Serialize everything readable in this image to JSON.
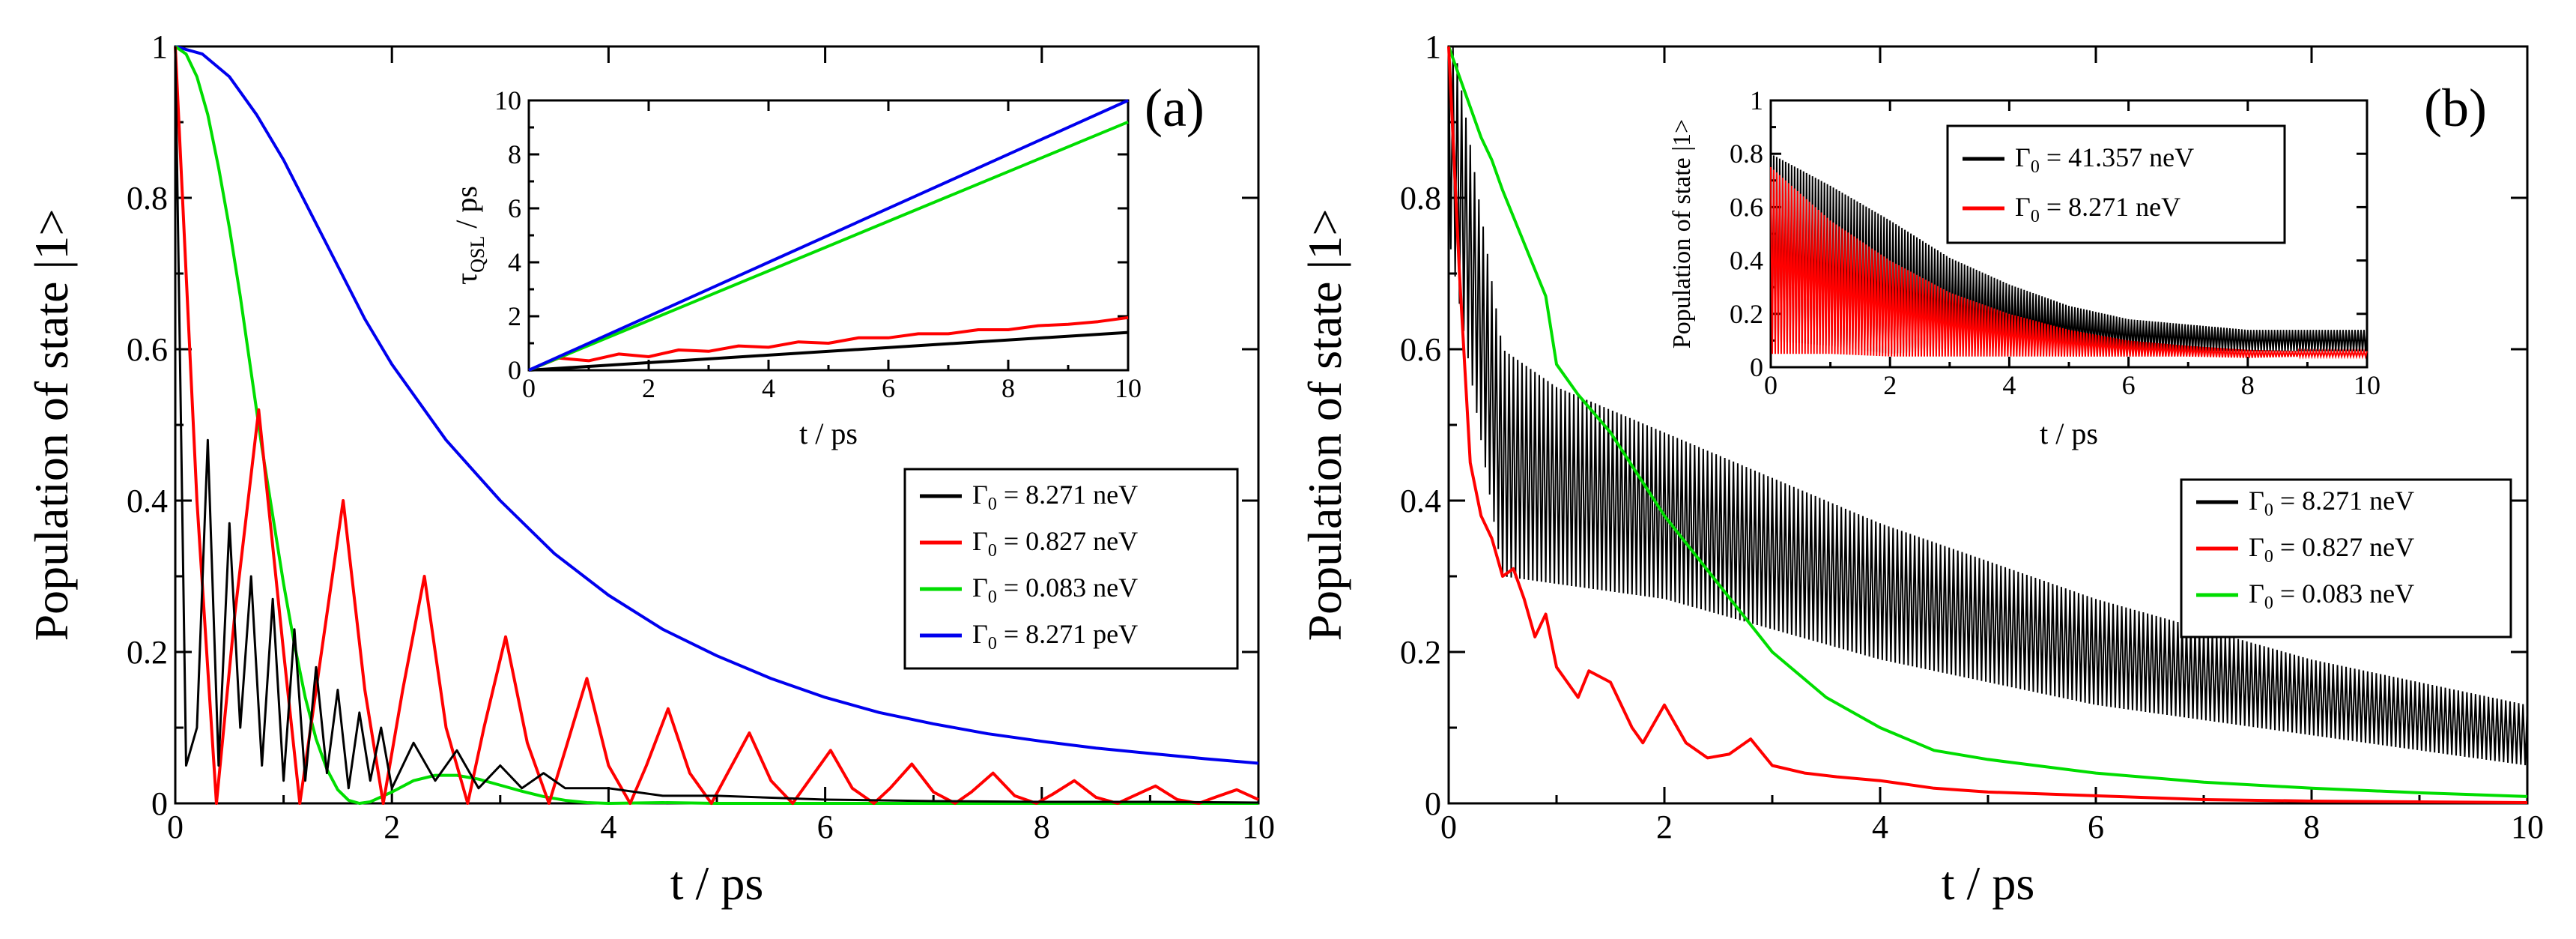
{
  "chart_data": [
    {
      "panel": "(a)",
      "type": "line",
      "xlabel": "t / ps",
      "ylabel": "Population of state |1>",
      "xlim": [
        0,
        10
      ],
      "ylim": [
        0,
        1
      ],
      "xticks": [
        "0",
        "2",
        "4",
        "6",
        "8",
        "10"
      ],
      "yticks": [
        "0",
        "0.2",
        "0.4",
        "0.6",
        "0.8",
        "1"
      ],
      "legend_position": "middle-right",
      "series": [
        {
          "name": "Γ0 = 8.271 neV",
          "symbol": "Γ",
          "sub": "0",
          "rest": " = 8.271 neV",
          "color": "#000000",
          "x": [
            0,
            0.1,
            0.2,
            0.3,
            0.4,
            0.5,
            0.6,
            0.7,
            0.8,
            0.9,
            1.0,
            1.1,
            1.2,
            1.3,
            1.4,
            1.5,
            1.6,
            1.7,
            1.8,
            1.9,
            2.0,
            2.2,
            2.4,
            2.6,
            2.8,
            3.0,
            3.2,
            3.4,
            3.6,
            3.8,
            4.0,
            4.5,
            5.0,
            6.0,
            7.0,
            8.0,
            9.0,
            10.0
          ],
          "y": [
            1,
            0.05,
            0.1,
            0.48,
            0.05,
            0.37,
            0.1,
            0.3,
            0.05,
            0.27,
            0.03,
            0.23,
            0.03,
            0.18,
            0.04,
            0.15,
            0.02,
            0.12,
            0.03,
            0.1,
            0.02,
            0.08,
            0.03,
            0.07,
            0.02,
            0.05,
            0.02,
            0.04,
            0.02,
            0.02,
            0.02,
            0.01,
            0.01,
            0.005,
            0.003,
            0.002,
            0.002,
            0.001
          ]
        },
        {
          "name": "Γ0 = 0.827 neV",
          "symbol": "Γ",
          "sub": "0",
          "rest": " = 0.827 neV",
          "color": "#ff0000",
          "x": [
            0,
            0.2,
            0.38,
            0.55,
            0.77,
            1.0,
            1.15,
            1.35,
            1.55,
            1.75,
            1.92,
            2.1,
            2.3,
            2.5,
            2.7,
            2.85,
            3.05,
            3.25,
            3.45,
            3.6,
            3.8,
            4.0,
            4.2,
            4.35,
            4.55,
            4.75,
            4.95,
            5.1,
            5.3,
            5.5,
            5.7,
            5.85,
            6.05,
            6.25,
            6.45,
            6.6,
            6.8,
            7.0,
            7.2,
            7.35,
            7.55,
            7.75,
            7.95,
            8.1,
            8.3,
            8.5,
            8.7,
            8.85,
            9.05,
            9.25,
            9.45,
            9.6,
            9.8,
            10.0
          ],
          "y": [
            1,
            0.4,
            0.0,
            0.25,
            0.52,
            0.2,
            0.0,
            0.2,
            0.4,
            0.15,
            0.0,
            0.15,
            0.3,
            0.1,
            0.0,
            0.1,
            0.22,
            0.08,
            0.0,
            0.07,
            0.165,
            0.05,
            0.0,
            0.05,
            0.125,
            0.04,
            0.0,
            0.04,
            0.093,
            0.03,
            0.0,
            0.03,
            0.07,
            0.02,
            0.0,
            0.02,
            0.052,
            0.015,
            0.0,
            0.015,
            0.04,
            0.01,
            0.0,
            0.012,
            0.03,
            0.008,
            0.0,
            0.01,
            0.023,
            0.005,
            0.0,
            0.008,
            0.018,
            0.005
          ]
        },
        {
          "name": "Γ0 = 0.083 neV",
          "symbol": "Γ",
          "sub": "0",
          "rest": " = 0.083 neV",
          "color": "#00dd00",
          "x": [
            0,
            0.1,
            0.2,
            0.3,
            0.4,
            0.5,
            0.6,
            0.7,
            0.8,
            0.9,
            1.0,
            1.1,
            1.2,
            1.3,
            1.4,
            1.5,
            1.6,
            1.7,
            1.8,
            2.0,
            2.2,
            2.4,
            2.6,
            2.8,
            3.0,
            3.2,
            3.4,
            3.6,
            3.8,
            4.0,
            4.5,
            5.0,
            6.0,
            8.0,
            10.0
          ],
          "y": [
            1,
            0.99,
            0.96,
            0.91,
            0.84,
            0.76,
            0.67,
            0.57,
            0.47,
            0.38,
            0.29,
            0.21,
            0.14,
            0.085,
            0.045,
            0.018,
            0.004,
            0.0,
            0.002,
            0.015,
            0.03,
            0.037,
            0.037,
            0.032,
            0.024,
            0.016,
            0.009,
            0.004,
            0.001,
            0.0,
            0.001,
            0.0,
            0.0,
            0.0,
            0.0
          ]
        },
        {
          "name": "Γ0 = 8.271 peV",
          "symbol": "Γ",
          "sub": "0",
          "rest": " = 8.271 peV",
          "color": "#0000ee",
          "x": [
            0,
            0.25,
            0.5,
            0.75,
            1.0,
            1.25,
            1.5,
            1.75,
            2.0,
            2.5,
            3.0,
            3.5,
            4.0,
            4.5,
            5.0,
            5.5,
            6.0,
            6.5,
            7.0,
            7.5,
            8.0,
            8.5,
            9.0,
            9.5,
            10.0
          ],
          "y": [
            1,
            0.99,
            0.96,
            0.91,
            0.85,
            0.78,
            0.71,
            0.64,
            0.58,
            0.48,
            0.4,
            0.33,
            0.275,
            0.23,
            0.195,
            0.165,
            0.14,
            0.12,
            0.105,
            0.092,
            0.082,
            0.073,
            0.066,
            0.059,
            0.053
          ]
        }
      ],
      "inset": {
        "xlabel": "t / ps",
        "ylabel_symbol": "τ",
        "ylabel_sub": "QSL",
        "ylabel_rest": " / ps",
        "xlim": [
          0,
          10
        ],
        "ylim": [
          0,
          10
        ],
        "xticks": [
          "0",
          "2",
          "4",
          "6",
          "8",
          "10"
        ],
        "yticks": [
          "0",
          "2",
          "4",
          "6",
          "8",
          "10"
        ],
        "series": [
          {
            "color": "#000000",
            "x": [
              0,
              10
            ],
            "y": [
              0,
              1.4
            ]
          },
          {
            "color": "#ff0000",
            "x": [
              0,
              0.5,
              1,
              1.5,
              2,
              2.5,
              3,
              3.5,
              4,
              4.5,
              5,
              5.5,
              6,
              6.5,
              7,
              7.5,
              8,
              8.5,
              9,
              9.5,
              10
            ],
            "y": [
              0,
              0.45,
              0.35,
              0.6,
              0.5,
              0.75,
              0.7,
              0.9,
              0.85,
              1.05,
              1.0,
              1.2,
              1.2,
              1.35,
              1.35,
              1.5,
              1.5,
              1.65,
              1.7,
              1.8,
              1.95
            ]
          },
          {
            "color": "#00dd00",
            "x": [
              0,
              10
            ],
            "y": [
              0,
              9.2
            ]
          },
          {
            "color": "#0000ee",
            "x": [
              0,
              10
            ],
            "y": [
              0,
              10
            ]
          }
        ]
      }
    },
    {
      "panel": "(b)",
      "type": "line",
      "xlabel": "t / ps",
      "ylabel": "Population of state |1>",
      "xlim": [
        0,
        10
      ],
      "ylim": [
        0,
        1
      ],
      "xticks": [
        "0",
        "2",
        "4",
        "6",
        "8",
        "10"
      ],
      "yticks": [
        "0",
        "0.2",
        "0.4",
        "0.6",
        "0.8",
        "1"
      ],
      "legend_position": "middle-right",
      "series": [
        {
          "name": "Γ0 = 8.271 neV",
          "symbol": "Γ",
          "sub": "0",
          "rest": " = 8.271 neV",
          "color": "#000000",
          "x": [
            0,
            0.5,
            1,
            2,
            3,
            4,
            5,
            6,
            7,
            8,
            9,
            10
          ],
          "y": [
            0.9,
            0.45,
            0.42,
            0.38,
            0.33,
            0.28,
            0.24,
            0.2,
            0.17,
            0.14,
            0.115,
            0.09
          ],
          "band": [
            0.15,
            0.15,
            0.13,
            0.11,
            0.1,
            0.09,
            0.08,
            0.07,
            0.06,
            0.05,
            0.045,
            0.04
          ]
        },
        {
          "name": "Γ0 = 0.827 neV",
          "symbol": "Γ",
          "sub": "0",
          "rest": " = 0.827 neV",
          "color": "#ff0000",
          "x": [
            0,
            0.1,
            0.2,
            0.3,
            0.4,
            0.5,
            0.6,
            0.7,
            0.8,
            0.9,
            1.0,
            1.1,
            1.2,
            1.3,
            1.5,
            1.7,
            1.8,
            2.0,
            2.2,
            2.4,
            2.6,
            2.8,
            3.0,
            3.3,
            3.6,
            4.0,
            4.5,
            5.0,
            6.0,
            7.0,
            8.0,
            9.0,
            10.0
          ],
          "y": [
            1,
            0.7,
            0.45,
            0.38,
            0.35,
            0.3,
            0.31,
            0.27,
            0.22,
            0.25,
            0.18,
            0.16,
            0.14,
            0.175,
            0.16,
            0.1,
            0.08,
            0.13,
            0.08,
            0.06,
            0.065,
            0.085,
            0.05,
            0.04,
            0.035,
            0.03,
            0.02,
            0.015,
            0.01,
            0.005,
            0.003,
            0.002,
            0.001
          ]
        },
        {
          "name": "Γ0 = 0.083 neV",
          "symbol": "Γ",
          "sub": "0",
          "rest": " = 0.083 neV",
          "color": "#00dd00",
          "x": [
            0,
            0.1,
            0.2,
            0.3,
            0.4,
            0.5,
            0.7,
            0.9,
            1.0,
            1.2,
            1.5,
            2.0,
            2.5,
            3.0,
            3.5,
            4.0,
            4.5,
            5.0,
            6.0,
            7.0,
            8.0,
            9.0,
            10.0
          ],
          "y": [
            1,
            0.96,
            0.92,
            0.88,
            0.85,
            0.81,
            0.74,
            0.67,
            0.58,
            0.54,
            0.49,
            0.38,
            0.29,
            0.2,
            0.14,
            0.1,
            0.07,
            0.058,
            0.04,
            0.028,
            0.02,
            0.014,
            0.009
          ]
        }
      ],
      "inset": {
        "xlabel": "t / ps",
        "ylabel": "Population of state |1>",
        "xlim": [
          0,
          10
        ],
        "ylim": [
          0,
          1
        ],
        "xticks": [
          "0",
          "2",
          "4",
          "6",
          "8",
          "10"
        ],
        "yticks": [
          "0",
          "0.2",
          "0.4",
          "0.6",
          "0.8",
          "1"
        ],
        "series": [
          {
            "name": "Γ0 = 41.357 neV",
            "symbol": "Γ",
            "sub": "0",
            "rest": " = 41.357 neV",
            "color": "#000000",
            "x": [
              0,
              1,
              2,
              3,
              4,
              5,
              6,
              7,
              8,
              9,
              10
            ],
            "y": [
              0.45,
              0.38,
              0.3,
              0.24,
              0.19,
              0.15,
              0.12,
              0.11,
              0.1,
              0.1,
              0.1
            ],
            "band": [
              0.35,
              0.3,
              0.25,
              0.17,
              0.12,
              0.08,
              0.06,
              0.05,
              0.04,
              0.04,
              0.04
            ]
          },
          {
            "name": "Γ0 = 8.271 neV",
            "symbol": "Γ",
            "sub": "0",
            "rest": " = 8.271 neV",
            "color": "#ff0000",
            "x": [
              0,
              1,
              2,
              3,
              4,
              5,
              6,
              7,
              8,
              9,
              10
            ],
            "y": [
              0.4,
              0.3,
              0.22,
              0.16,
              0.12,
              0.09,
              0.07,
              0.06,
              0.05,
              0.05,
              0.05
            ],
            "band": [
              0.35,
              0.25,
              0.18,
              0.12,
              0.08,
              0.05,
              0.03,
              0.02,
              0.015,
              0.01,
              0.01
            ]
          }
        ]
      }
    }
  ]
}
